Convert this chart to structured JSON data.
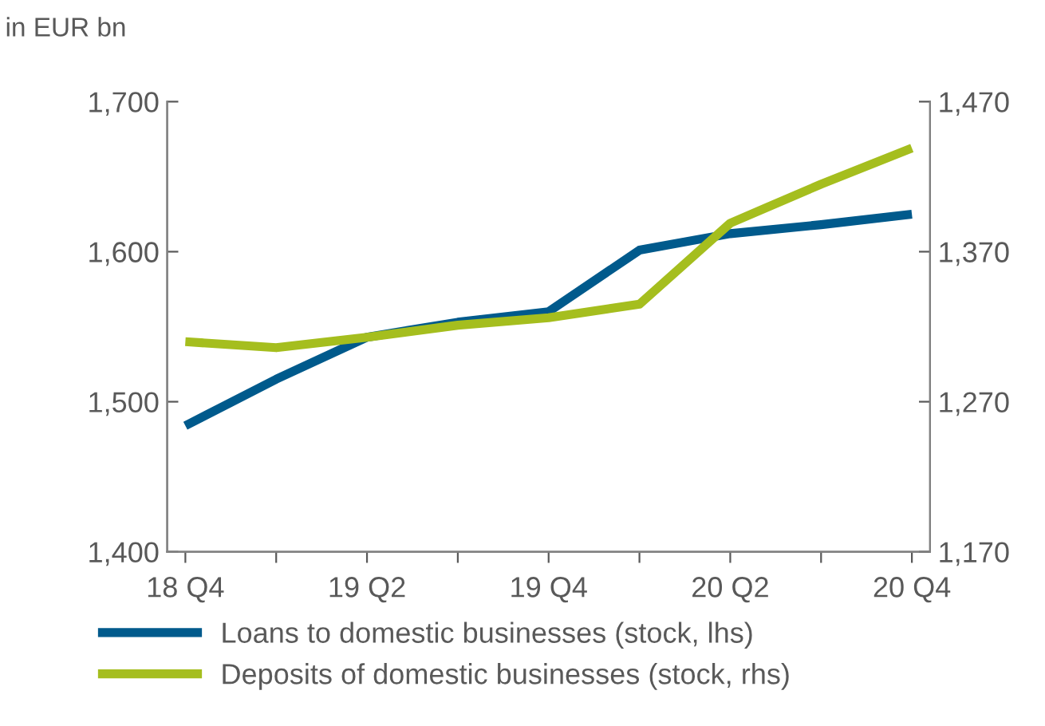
{
  "chart_data": {
    "type": "line",
    "ylabel": "in EUR bn",
    "categories": [
      "18 Q4",
      null,
      "19 Q2",
      null,
      "19 Q4",
      null,
      "20 Q2",
      null,
      "20 Q4"
    ],
    "series": [
      {
        "name": "Loans to domestic businesses (stock, lhs)",
        "color": "#005a8c",
        "values": [
          1484,
          1515,
          1543,
          1553,
          1560,
          1601,
          1612,
          1618,
          1625
        ]
      },
      {
        "name": "Deposits of domestic businesses (stock, rhs)",
        "color": "#a5be1e",
        "axis": "y2",
        "values": [
          1310,
          1306,
          1313,
          1321,
          1326,
          1335,
          1389,
          1415,
          1439
        ]
      }
    ],
    "ylim": [
      1400,
      1700
    ],
    "yticks": [
      {
        "value": 1400,
        "label": "1,400"
      },
      {
        "value": 1500,
        "label": "1,500"
      },
      {
        "value": 1600,
        "label": "1,600"
      },
      {
        "value": 1700,
        "label": "1,700"
      }
    ],
    "y2lim": [
      1170,
      1470
    ],
    "y2ticks": [
      {
        "value": 1170,
        "label": "1,170"
      },
      {
        "value": 1270,
        "label": "1,270"
      },
      {
        "value": 1370,
        "label": "1,370"
      },
      {
        "value": 1470,
        "label": "1,470"
      }
    ],
    "grid": false,
    "legend": "bottom",
    "marker": "none",
    "line_style": "solid"
  }
}
